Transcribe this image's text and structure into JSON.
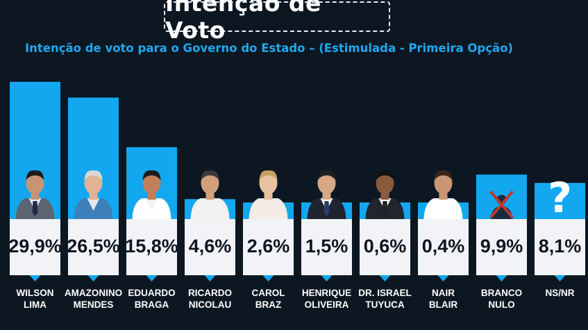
{
  "header": {
    "title": "Intenção de Voto",
    "subtitle": "Intenção de voto para o Governo do Estado – (Estimulada - Primeira Opção)"
  },
  "colors": {
    "background": "#0c1722",
    "bar": "#13a7f0",
    "card": "#f2f3f6",
    "accent_text": "#21a7ef"
  },
  "chart_data": {
    "type": "bar",
    "title": "Intenção de Voto",
    "subtitle": "Intenção de voto para o Governo do Estado – (Estimulada - Primeira Opção)",
    "categories": [
      [
        "WILSON",
        "LIMA"
      ],
      [
        "AMAZONINO",
        "MENDES"
      ],
      [
        "EDUARDO",
        "BRAGA"
      ],
      [
        "RICARDO",
        "NICOLAU"
      ],
      [
        "CAROL",
        "BRAZ"
      ],
      [
        "HENRIQUE",
        "OLIVEIRA"
      ],
      [
        "DR. ISRAEL",
        "TUYUCA"
      ],
      [
        "NAIR",
        "BLAIR"
      ],
      [
        "BRANCO",
        "NULO"
      ],
      [
        "NS/NR"
      ]
    ],
    "values": [
      29.9,
      26.5,
      15.8,
      4.6,
      2.6,
      1.5,
      0.6,
      0.4,
      9.9,
      8.1
    ],
    "value_labels": [
      "29,9%",
      "26,5%",
      "15,8%",
      "4,6%",
      "2,6%",
      "1,5%",
      "0,6%",
      "0,4%",
      "9,9%",
      "8,1%"
    ],
    "icons": [
      "candidate-photo",
      "candidate-photo",
      "candidate-photo",
      "candidate-photo",
      "candidate-photo",
      "candidate-photo",
      "candidate-photo",
      "candidate-photo",
      "crossed-person-icon",
      "question-mark-icon"
    ],
    "unit": "%"
  }
}
